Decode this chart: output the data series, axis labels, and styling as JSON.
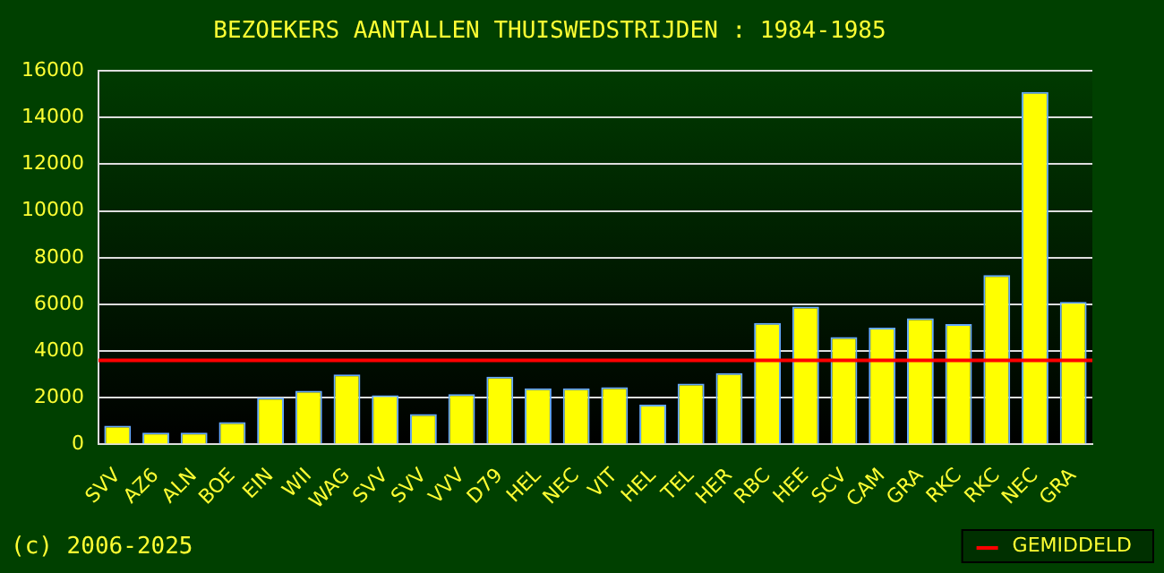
{
  "chart_data": {
    "type": "bar",
    "title": "BEZOEKERS AANTALLEN THUISWEDSTRIJDEN : 1984-1985",
    "categories": [
      "SVV",
      "AZ6",
      "ALN",
      "BOE",
      "EIN",
      "WII",
      "WAG",
      "SVV",
      "SVV",
      "VVV",
      "D79",
      "HEL",
      "NEC",
      "VIT",
      "HEL",
      "TEL",
      "HER",
      "RBC",
      "HEE",
      "SCV",
      "CAM",
      "GRA",
      "RKC",
      "RKC",
      "NEC",
      "GRA"
    ],
    "values": [
      800,
      500,
      500,
      950,
      2000,
      2300,
      3000,
      2100,
      1300,
      2150,
      2900,
      2400,
      2400,
      2450,
      1700,
      2600,
      3050,
      5200,
      5900,
      4600,
      5000,
      5400,
      5150,
      7250,
      15100,
      6100
    ],
    "color": "#ffff00",
    "ylim": [
      0,
      16000
    ],
    "yticks": [
      0,
      2000,
      4000,
      6000,
      8000,
      10000,
      12000,
      14000,
      16000
    ],
    "grid": "y",
    "ref_lines": [
      {
        "axis": "y",
        "value": 3600,
        "label": "GEMIDDELD",
        "color": "#ff0000"
      }
    ],
    "annotations": [
      "(c) 2006-2025"
    ]
  }
}
